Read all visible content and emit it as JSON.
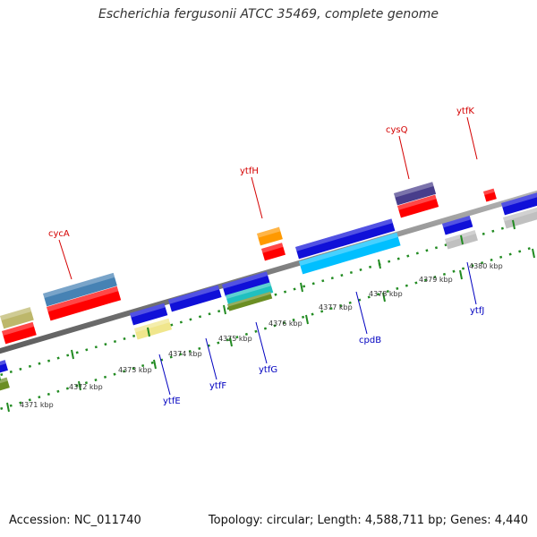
{
  "title": "Escherichia fergusonii ATCC 35469, complete genome",
  "footer": {
    "accession": "Accession: NC_011740",
    "summary": "Topology: circular; Length: 4,588,711 bp; Genes: 4,440"
  },
  "colors": {
    "forward_label": "#d40000",
    "reverse_label": "#0000c0",
    "tick": "#228b22",
    "backbone": "#8a8a8a"
  },
  "kbp_labels": [
    {
      "text": "4371 kbp",
      "kbp": 4371
    },
    {
      "text": "4372 kbp",
      "kbp": 4372
    },
    {
      "text": "4373 kbp",
      "kbp": 4373
    },
    {
      "text": "4374 kbp",
      "kbp": 4374
    },
    {
      "text": "4375 kbp",
      "kbp": 4375
    },
    {
      "text": "4376 kbp",
      "kbp": 4376
    },
    {
      "text": "4377 kbp",
      "kbp": 4377
    },
    {
      "text": "4378 kbp",
      "kbp": 4378
    },
    {
      "text": "4379 kbp",
      "kbp": 4379
    },
    {
      "text": "4380 kbp",
      "kbp": 4380
    }
  ],
  "gene_labels": [
    {
      "text": "cycA",
      "strand": "forward"
    },
    {
      "text": "ytfH",
      "strand": "forward"
    },
    {
      "text": "cysQ",
      "strand": "forward"
    },
    {
      "text": "ytfK",
      "strand": "forward"
    },
    {
      "text": "ytfE",
      "strand": "reverse"
    },
    {
      "text": "ytfF",
      "strand": "reverse"
    },
    {
      "text": "ytfG",
      "strand": "reverse"
    },
    {
      "text": "cpdB",
      "strand": "reverse"
    },
    {
      "text": "ytfJ",
      "strand": "reverse"
    }
  ]
}
